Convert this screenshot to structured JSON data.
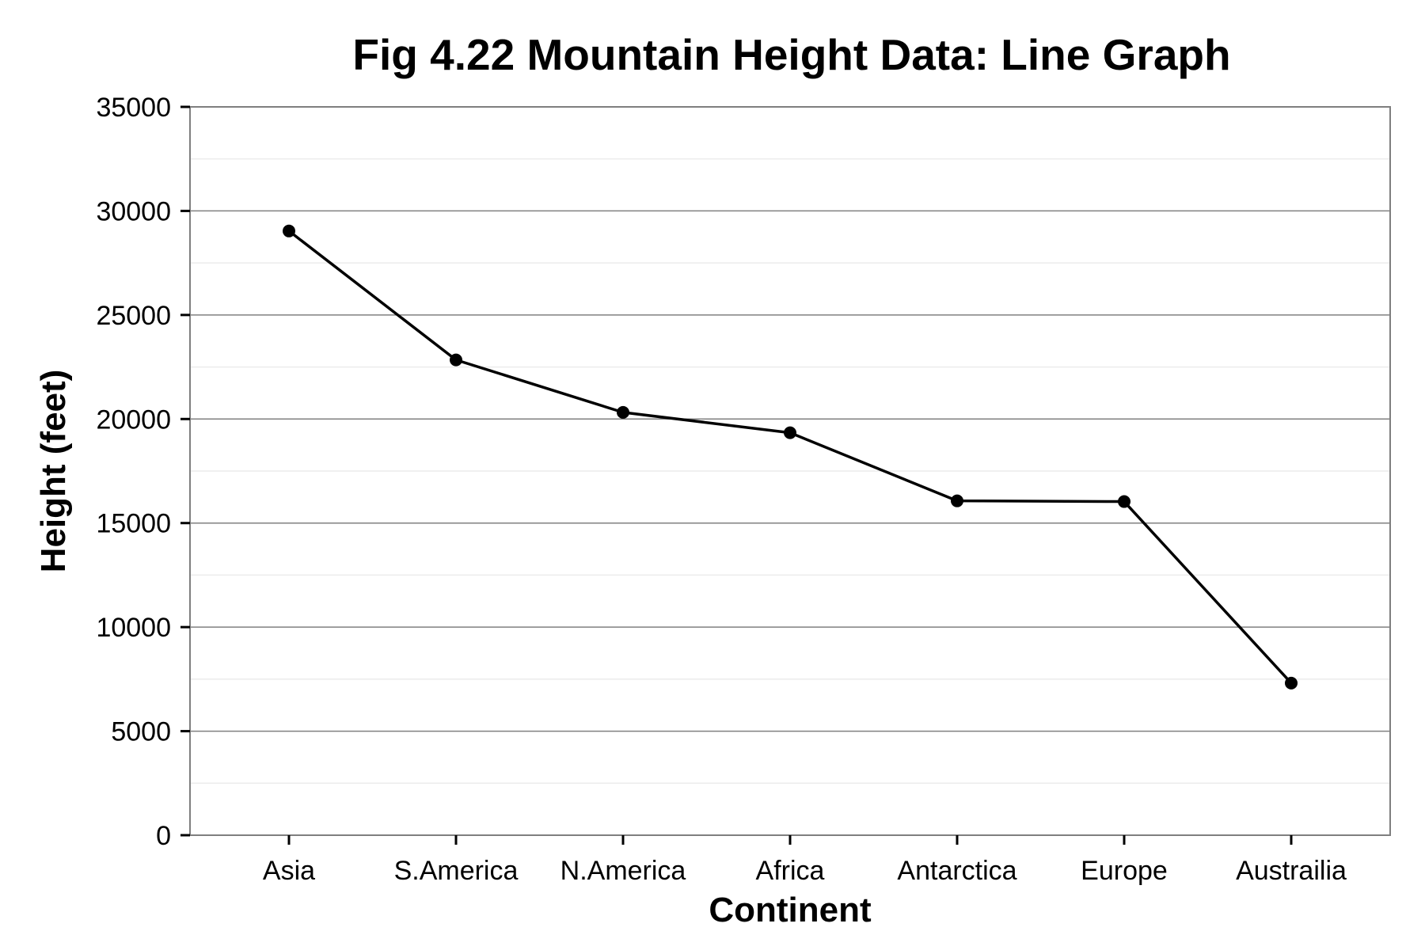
{
  "chart_data": {
    "type": "line",
    "title": "Fig 4.22 Mountain Height Data: Line Graph",
    "xlabel": "Continent",
    "ylabel": "Height (feet)",
    "categories": [
      "Asia",
      "S.America",
      "N.America",
      "Africa",
      "Antarctica",
      "Europe",
      "Austrailia"
    ],
    "values": [
      29035,
      22841,
      20320,
      19340,
      16067,
      16033,
      7310
    ],
    "ylim": [
      0,
      35000
    ],
    "yticks": [
      0,
      5000,
      10000,
      15000,
      20000,
      25000,
      30000,
      35000
    ],
    "ytick_labels": [
      "0",
      "5000",
      "10000",
      "15000",
      "20000",
      "25000",
      "30000",
      "35000"
    ],
    "grid": true,
    "legend": "none",
    "colors": {
      "line": "#000000",
      "grid": "#808080",
      "minor_grid": "#ececec",
      "border": "#7f7f7f"
    }
  }
}
